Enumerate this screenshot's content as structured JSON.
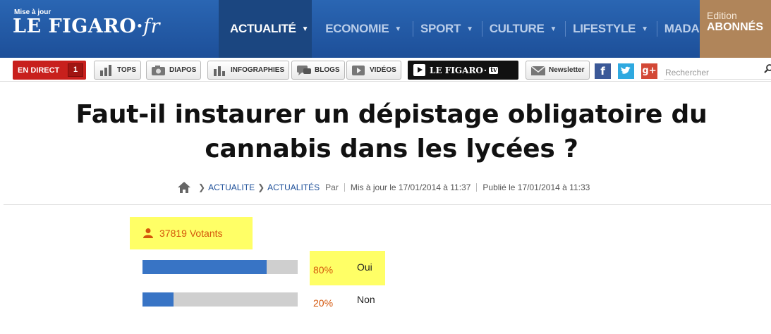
{
  "header": {
    "logo_tagline": "Mise à jour",
    "logo_name": "LE FIGARO",
    "logo_suffix": "fr",
    "nav": [
      {
        "label": "ACTUALITÉ",
        "active": true
      },
      {
        "label": "ECONOMIE",
        "active": false
      },
      {
        "label": "SPORT",
        "active": false
      },
      {
        "label": "CULTURE",
        "active": false
      },
      {
        "label": "LIFESTYLE",
        "active": false
      },
      {
        "label": "MADAME",
        "active": false
      }
    ],
    "edition_line1": "Edition",
    "edition_line2": "ABONNÉS"
  },
  "toolbar": {
    "live_label": "EN DIRECT",
    "live_count": "1",
    "buttons": [
      "TOPS",
      "DIAPOS",
      "INFOGRAPHIES",
      "BLOGS",
      "VIDÉOS"
    ],
    "figaro_tv": "LE FIGARO",
    "figaro_tv_suffix": "tv",
    "newsletter": "Newsletter",
    "search_placeholder": "Rechercher"
  },
  "article": {
    "title": "Faut-il instaurer un dépistage obligatoire du cannabis dans les lycées ?",
    "breadcrumb": {
      "level1": "ACTUALITE",
      "level2": "ACTUALITÉS",
      "author_prefix": "Par",
      "updated": "Mis à jour le 17/01/2014 à 11:37",
      "published": "Publié le 17/01/2014 à 11:33"
    }
  },
  "poll": {
    "voters_label": "37819 Votants",
    "options": [
      {
        "label": "Oui",
        "percent_label": "80%",
        "fraction": 0.8
      },
      {
        "label": "Non",
        "percent_label": "20%",
        "fraction": 0.2
      }
    ]
  },
  "colors": {
    "header_blue": "#1d4f99",
    "bar_blue": "#3874c5",
    "highlight_yellow": "#ffff66",
    "accent_orange": "#d4560b",
    "live_red": "#c8201d"
  }
}
